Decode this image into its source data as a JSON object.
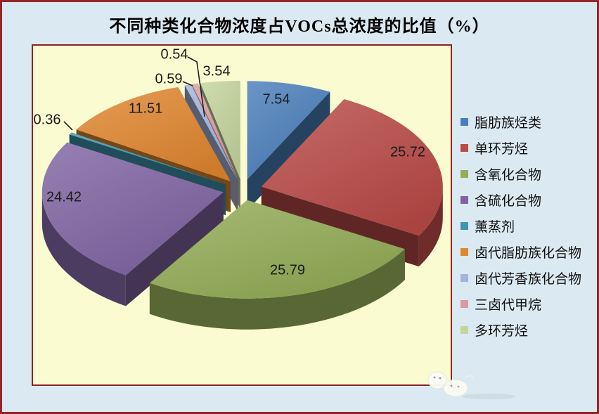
{
  "title": "不同种类化合物浓度占VOCs总浓度的比值（%）",
  "chart_data": {
    "type": "pie",
    "style": "3d-exploded",
    "unit": "%",
    "title": "不同种类化合物浓度占VOCs总浓度的比值（%）",
    "legend_position": "right",
    "start_angle_deg": 0,
    "direction": "clockwise",
    "series": [
      {
        "label": "脂肪族烃类",
        "value": 7.54,
        "color": "#4A7EBB"
      },
      {
        "label": "单环芳烃",
        "value": 25.72,
        "color": "#B94A47"
      },
      {
        "label": "含氧化合物",
        "value": 25.79,
        "color": "#93AC56"
      },
      {
        "label": "含硫化合物",
        "value": 24.42,
        "color": "#8064A2"
      },
      {
        "label": "薰蒸剂",
        "value": 0.36,
        "color": "#3E95AC"
      },
      {
        "label": "卤代脂肪族化合物",
        "value": 11.51,
        "color": "#E0862F"
      },
      {
        "label": "卤代芳香族化合物",
        "value": 0.59,
        "color": "#A3B3D9"
      },
      {
        "label": "三卤代甲烷",
        "value": 0.54,
        "color": "#D89C9E"
      },
      {
        "label": "多环芳烃",
        "value": 3.54,
        "color": "#C4D49E"
      }
    ]
  },
  "colors": {
    "outer_background": "#DBE9F2",
    "outer_border": "#932727",
    "plot_background": "#FBFBD1",
    "plot_border": "#8B2323",
    "data_label_text": "#1B1B1B"
  }
}
